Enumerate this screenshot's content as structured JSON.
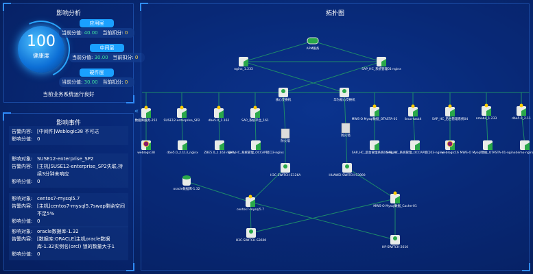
{
  "analysis": {
    "title": "影响分析",
    "score": "100",
    "score_label": "健康度",
    "value_label": "当前分值:",
    "deduct_label": "当前扣分:",
    "layers": [
      {
        "name": "应用层",
        "value": "40.00",
        "deduct": "0"
      },
      {
        "name": "中间层",
        "value": "30.00",
        "deduct": "0"
      },
      {
        "name": "硬件层",
        "value": "30.00",
        "deduct": "0"
      }
    ],
    "status": "当前业务系统运行良好"
  },
  "events": {
    "title": "影响事件",
    "items": [
      {
        "rows": [
          {
            "k": "告警内容:",
            "v": "[中间件]Weblogic38 不可达"
          },
          {
            "k": "影响分值:",
            "v": "0"
          }
        ]
      },
      {
        "rows": [
          {
            "k": "影响对象:",
            "v": "SUSE12-enterprise_SP2"
          },
          {
            "k": "告警内容:",
            "v": "[主机]SUSE12-enterprise_SP2失联,持续3分钟未响应"
          },
          {
            "k": "影响分值:",
            "v": "0"
          }
        ]
      },
      {
        "rows": [
          {
            "k": "影响对象:",
            "v": "centos7-mysql5.7"
          },
          {
            "k": "告警内容:",
            "v": "[主机]centos7-mysql5.7swap剩余空间不足5%"
          },
          {
            "k": "影响分值:",
            "v": "0"
          }
        ]
      },
      {
        "rows": [
          {
            "k": "影响对象:",
            "v": "oracle数据库-1.32"
          },
          {
            "k": "告警内容:",
            "v": "[数据库:ORACLE]主机oracle数据库-1.32实例名(orcl) 锁的数量大于1"
          },
          {
            "k": "影响分值:",
            "v": "0"
          }
        ]
      }
    ]
  },
  "topology": {
    "title": "拓扑图",
    "nodes": [
      {
        "label": "APM服务",
        "type": "service"
      },
      {
        "label": "nginx_1.233",
        "type": "app"
      },
      {
        "label": "SAP_HC_系统管理01-nginx",
        "type": "app"
      },
      {
        "label": "核心交换机",
        "type": "switch"
      },
      {
        "label": "华为核心交换机",
        "type": "switch"
      },
      {
        "label": "数据库服务-252",
        "type": "host-warn"
      },
      {
        "label": "SUSE12-enterprise_SP2",
        "type": "host-warn"
      },
      {
        "label": "dbe5.0_1.162",
        "type": "host-warn"
      },
      {
        "label": "SAP_系统平台_161",
        "type": "host-warn"
      },
      {
        "label": "MWS-O Mysql数据_OTASTA-01",
        "type": "host-warn"
      },
      {
        "label": "linux-task4",
        "type": "host-warn"
      },
      {
        "label": "SAP_HC_后台管理系统04",
        "type": "host-warn"
      },
      {
        "label": "nmobil_1.233",
        "type": "host-warn"
      },
      {
        "label": "dbe5.0_2.11",
        "type": "host-warn"
      },
      {
        "label": "weblogic38",
        "type": "app-error"
      },
      {
        "label": "dbe5.0_2.113_nginx",
        "type": "app"
      },
      {
        "label": "ZBE5.0_1.162-nginx",
        "type": "app"
      },
      {
        "label": "SAP_HC_系统管理_OCCAP接口3-nginx",
        "type": "app"
      },
      {
        "label": "SAP_HC_后台管理系统04-nginx",
        "type": "app"
      },
      {
        "label": "SAP_HC_系统管理_OCCAP接口03-nginx",
        "type": "app"
      },
      {
        "label": "weblogic16",
        "type": "app-error"
      },
      {
        "label": "MWS-O Mysql数据_OTASTA-01-nginx",
        "type": "app"
      },
      {
        "label": "demo-nginx",
        "type": "app"
      },
      {
        "label": "防火墙",
        "type": "firewall"
      },
      {
        "label": "防火墙",
        "type": "firewall"
      },
      {
        "label": "H3C-SWITCH-E126A",
        "type": "switch"
      },
      {
        "label": "HUAWEI-SWITCH-S3900",
        "type": "switch"
      },
      {
        "label": "oracle数据库-1.32",
        "type": "db"
      },
      {
        "label": "centos7-mysql5.7",
        "type": "host-warn"
      },
      {
        "label": "MWS-O Mysql数据_Cache-01",
        "type": "host-warn"
      },
      {
        "label": "H3C-SWITCH-S3600",
        "type": "switch"
      },
      {
        "label": "HP-SWITCH-2610",
        "type": "switch"
      }
    ],
    "colors": {
      "link": "#1e8a6a",
      "node": "#e8ece8",
      "accent": "#2aa84a",
      "warn": "#ffcc00",
      "error": "#8a1a6a"
    }
  }
}
